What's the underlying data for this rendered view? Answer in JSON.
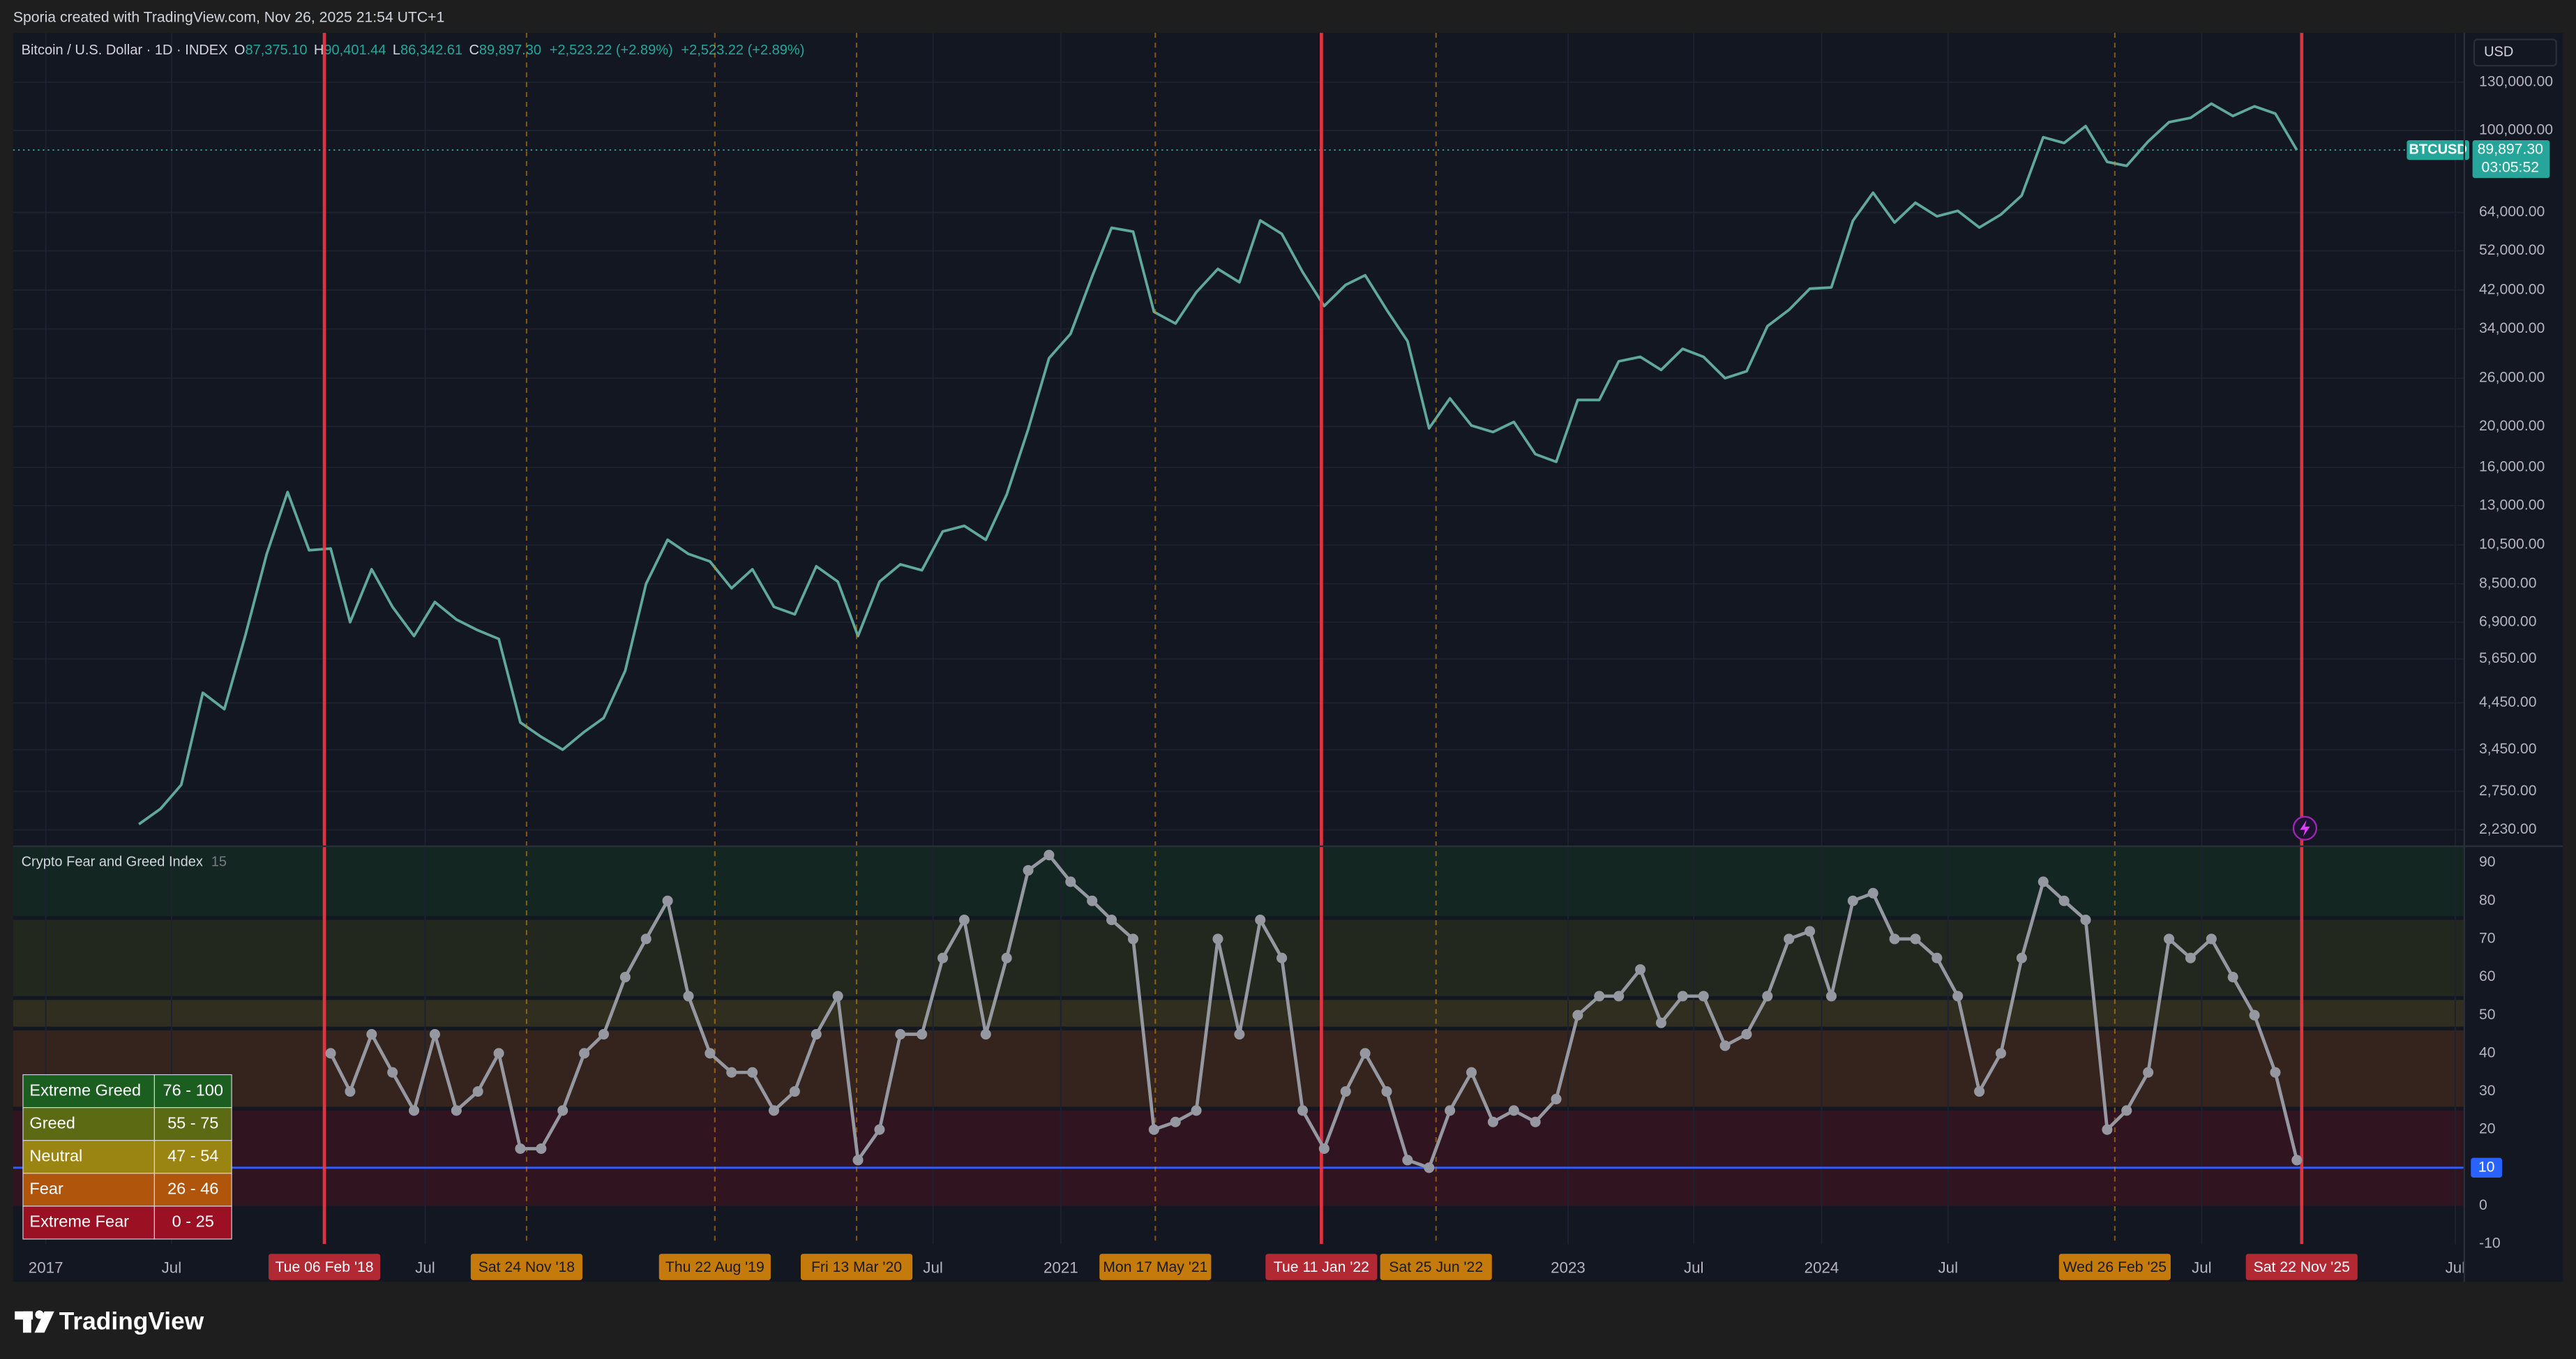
{
  "header": {
    "credit": "Sporia created with TradingView.com, Nov 26, 2025 21:54 UTC+1",
    "brand": "TradingView"
  },
  "chart_data": [
    {
      "type": "line",
      "title": "Bitcoin / U.S. Dollar · 1D · INDEX",
      "ohlc": [
        {
          "label": "O",
          "value": "87,375.10"
        },
        {
          "label": "H",
          "value": "90,401.44"
        },
        {
          "label": "L",
          "value": "86,342.61"
        },
        {
          "label": "C",
          "value": "89,897.30"
        }
      ],
      "changes": [
        "+2,523.22 (+2.89%)",
        "+2,523.22 (+2.89%)"
      ],
      "currency": "USD",
      "symbol": "BTCUSD",
      "countdown": "03:05:52",
      "last": {
        "value": 89897.3,
        "label": "89,897.30"
      },
      "scale": "log",
      "color": "#5fa89a",
      "grid": true,
      "ylim": [
        2040,
        170000
      ],
      "yticks": [
        {
          "value": 130000,
          "label": "130,000.00"
        },
        {
          "value": 100000,
          "label": "100,000.00"
        },
        {
          "value": 64000,
          "label": "64,000.00"
        },
        {
          "value": 52000,
          "label": "52,000.00"
        },
        {
          "value": 42000,
          "label": "42,000.00"
        },
        {
          "value": 34000,
          "label": "34,000.00"
        },
        {
          "value": 26000,
          "label": "26,000.00"
        },
        {
          "value": 20000,
          "label": "20,000.00"
        },
        {
          "value": 16000,
          "label": "16,000.00"
        },
        {
          "value": 13000,
          "label": "13,000.00"
        },
        {
          "value": 10500,
          "label": "10,500.00"
        },
        {
          "value": 8500,
          "label": "8,500.00"
        },
        {
          "value": 6900,
          "label": "6,900.00"
        },
        {
          "value": 5650,
          "label": "5,650.00"
        },
        {
          "value": 4450,
          "label": "4,450.00"
        },
        {
          "value": 3450,
          "label": "3,450.00"
        },
        {
          "value": 2750,
          "label": "2,750.00"
        },
        {
          "value": 2230,
          "label": "2,230.00"
        }
      ],
      "xlim": [
        "2016-11-15",
        "2026-07-14"
      ],
      "xticks": [
        {
          "value": "2017-01",
          "label": "2017"
        },
        {
          "value": "2017-07",
          "label": "Jul"
        },
        {
          "value": "2018-07",
          "label": "Jul"
        },
        {
          "value": "2020-07",
          "label": "Jul"
        },
        {
          "value": "2021-01",
          "label": "2021"
        },
        {
          "value": "2023-01",
          "label": "2023"
        },
        {
          "value": "2023-07",
          "label": "Jul"
        },
        {
          "value": "2024-01",
          "label": "2024"
        },
        {
          "value": "2024-07",
          "label": "Jul"
        },
        {
          "value": "2025-07",
          "label": "Jul"
        },
        {
          "value": "2026-07",
          "label": "Jul"
        }
      ],
      "markers": [
        {
          "date": "2018-02-06",
          "label": "Tue 06 Feb '18",
          "color": "#f23645",
          "style": "solid"
        },
        {
          "date": "2018-11-24",
          "label": "Sat 24 Nov '18",
          "color": "#d98a10",
          "style": "dashed"
        },
        {
          "date": "2019-08-22",
          "label": "Thu 22 Aug '19",
          "color": "#d98a10",
          "style": "dashed"
        },
        {
          "date": "2020-03-13",
          "label": "Fri 13 Mar '20",
          "color": "#d98a10",
          "style": "dashed"
        },
        {
          "date": "2021-05-17",
          "label": "Mon 17 May '21",
          "color": "#d98a10",
          "style": "dashed"
        },
        {
          "date": "2022-01-11",
          "label": "Tue 11 Jan '22",
          "color": "#f23645",
          "style": "solid"
        },
        {
          "date": "2022-06-25",
          "label": "Sat 25 Jun '22",
          "color": "#d98a10",
          "style": "dashed"
        },
        {
          "date": "2025-02-26",
          "label": "Wed 26 Feb '25",
          "color": "#d98a10",
          "style": "dashed"
        },
        {
          "date": "2025-11-22",
          "label": "Sat 22 Nov '25",
          "color": "#f23645",
          "style": "solid"
        }
      ],
      "x": [
        "2017-05",
        "2017-06",
        "2017-07",
        "2017-08",
        "2017-09",
        "2017-10",
        "2017-11",
        "2017-12",
        "2018-01",
        "2018-02",
        "2018-03",
        "2018-04",
        "2018-05",
        "2018-06",
        "2018-07",
        "2018-08",
        "2018-09",
        "2018-10",
        "2018-11",
        "2018-12",
        "2019-01",
        "2019-02",
        "2019-03",
        "2019-04",
        "2019-05",
        "2019-06",
        "2019-07",
        "2019-08",
        "2019-09",
        "2019-10",
        "2019-11",
        "2019-12",
        "2020-01",
        "2020-02",
        "2020-03",
        "2020-04",
        "2020-05",
        "2020-06",
        "2020-07",
        "2020-08",
        "2020-09",
        "2020-10",
        "2020-11",
        "2020-12",
        "2021-01",
        "2021-02",
        "2021-03",
        "2021-04",
        "2021-05",
        "2021-06",
        "2021-07",
        "2021-08",
        "2021-09",
        "2021-10",
        "2021-11",
        "2021-12",
        "2022-01",
        "2022-02",
        "2022-03",
        "2022-04",
        "2022-05",
        "2022-06",
        "2022-07",
        "2022-08",
        "2022-09",
        "2022-10",
        "2022-11",
        "2022-12",
        "2023-01",
        "2023-02",
        "2023-03",
        "2023-04",
        "2023-05",
        "2023-06",
        "2023-07",
        "2023-08",
        "2023-09",
        "2023-10",
        "2023-11",
        "2023-12",
        "2024-01",
        "2024-02",
        "2024-03",
        "2024-04",
        "2024-05",
        "2024-06",
        "2024-07",
        "2024-08",
        "2024-09",
        "2024-10",
        "2024-11",
        "2024-12",
        "2025-01",
        "2025-02",
        "2025-03",
        "2025-04",
        "2025-05",
        "2025-06",
        "2025-07",
        "2025-08",
        "2025-09",
        "2025-10",
        "2025-11"
      ],
      "values": [
        2300,
        2500,
        2850,
        4700,
        4300,
        6400,
        10000,
        14000,
        10200,
        10300,
        6900,
        9200,
        7500,
        6400,
        7700,
        7000,
        6600,
        6300,
        4000,
        3700,
        3450,
        3800,
        4100,
        5300,
        8500,
        10800,
        10000,
        9600,
        8300,
        9200,
        7500,
        7200,
        9350,
        8600,
        6400,
        8600,
        9450,
        9150,
        11300,
        11650,
        10800,
        13800,
        19700,
        29000,
        33100,
        45200,
        58900,
        57700,
        37300,
        35000,
        41500,
        47100,
        43800,
        61300,
        57000,
        46300,
        38500,
        43200,
        45500,
        37700,
        31800,
        19800,
        23300,
        20100,
        19400,
        20500,
        17200,
        16500,
        23100,
        23100,
        28500,
        29200,
        27200,
        30500,
        29200,
        26000,
        27000,
        34500,
        37700,
        42300,
        42600,
        61200,
        71300,
        60600,
        67500,
        62700,
        64600,
        59000,
        63300,
        70200,
        96400,
        93400,
        102400,
        84300,
        82500,
        94200,
        104600,
        107100,
        115700,
        108200,
        114000,
        109600,
        89897
      ]
    },
    {
      "type": "line",
      "title": "Crypto Fear and Greed Index",
      "length": "15",
      "color": "#9598a1",
      "ylim": [
        -10,
        94.3
      ],
      "yticks": [
        90,
        80,
        70,
        60,
        50,
        40,
        30,
        20,
        10,
        0,
        -10
      ],
      "reference_line": {
        "value": 10,
        "color": "#2962ff"
      },
      "zones": [
        {
          "name": "Extreme Greed",
          "range": "76 - 100",
          "low": 76,
          "high": 100,
          "color": "#1b5e20"
        },
        {
          "name": "Greed",
          "range": "55 - 75",
          "low": 55,
          "high": 75,
          "color": "#5d6a14"
        },
        {
          "name": "Neutral",
          "range": "47 - 54",
          "low": 47,
          "high": 54,
          "color": "#9a8512"
        },
        {
          "name": "Fear",
          "range": "26 - 46",
          "low": 26,
          "high": 46,
          "color": "#b0560c"
        },
        {
          "name": "Extreme Fear",
          "range": "0 - 25",
          "low": 0,
          "high": 25,
          "color": "#9b1022"
        }
      ],
      "x": [
        "2018-02",
        "2018-03",
        "2018-04",
        "2018-05",
        "2018-06",
        "2018-07",
        "2018-08",
        "2018-09",
        "2018-10",
        "2018-11",
        "2018-12",
        "2019-01",
        "2019-02",
        "2019-03",
        "2019-04",
        "2019-05",
        "2019-06",
        "2019-07",
        "2019-08",
        "2019-09",
        "2019-10",
        "2019-11",
        "2019-12",
        "2020-01",
        "2020-02",
        "2020-03",
        "2020-04",
        "2020-05",
        "2020-06",
        "2020-07",
        "2020-08",
        "2020-09",
        "2020-10",
        "2020-11",
        "2020-12",
        "2021-01",
        "2021-02",
        "2021-03",
        "2021-04",
        "2021-05",
        "2021-06",
        "2021-07",
        "2021-08",
        "2021-09",
        "2021-10",
        "2021-11",
        "2021-12",
        "2022-01",
        "2022-02",
        "2022-03",
        "2022-04",
        "2022-05",
        "2022-06",
        "2022-07",
        "2022-08",
        "2022-09",
        "2022-10",
        "2022-11",
        "2022-12",
        "2023-01",
        "2023-02",
        "2023-03",
        "2023-04",
        "2023-05",
        "2023-06",
        "2023-07",
        "2023-08",
        "2023-09",
        "2023-10",
        "2023-11",
        "2023-12",
        "2024-01",
        "2024-02",
        "2024-03",
        "2024-04",
        "2024-05",
        "2024-06",
        "2024-07",
        "2024-08",
        "2024-09",
        "2024-10",
        "2024-11",
        "2024-12",
        "2025-01",
        "2025-02",
        "2025-03",
        "2025-04",
        "2025-05",
        "2025-06",
        "2025-07",
        "2025-08",
        "2025-09",
        "2025-10",
        "2025-11"
      ],
      "values": [
        40,
        30,
        45,
        35,
        25,
        45,
        25,
        30,
        40,
        15,
        15,
        25,
        40,
        45,
        60,
        70,
        80,
        55,
        40,
        35,
        35,
        25,
        30,
        45,
        55,
        12,
        20,
        45,
        45,
        65,
        75,
        45,
        65,
        88,
        92,
        85,
        80,
        75,
        70,
        20,
        22,
        25,
        70,
        45,
        75,
        65,
        25,
        15,
        30,
        40,
        30,
        12,
        10,
        25,
        35,
        22,
        25,
        22,
        28,
        50,
        55,
        55,
        62,
        48,
        55,
        55,
        42,
        45,
        55,
        70,
        72,
        55,
        80,
        82,
        70,
        70,
        65,
        55,
        30,
        40,
        65,
        85,
        80,
        75,
        20,
        25,
        35,
        70,
        65,
        70,
        60,
        50,
        35,
        12
      ]
    }
  ]
}
